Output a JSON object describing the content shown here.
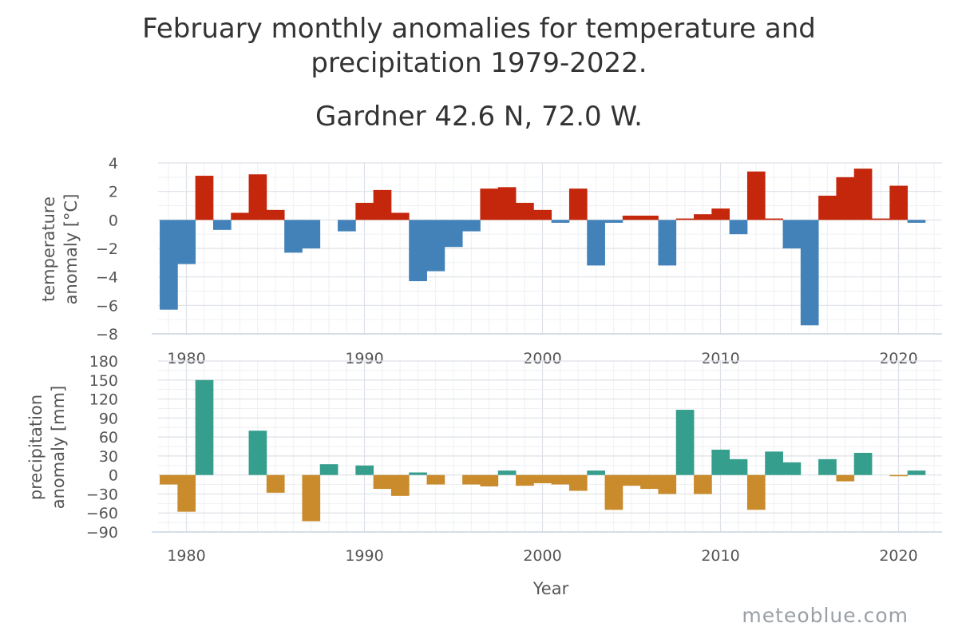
{
  "title_line1": "February monthly anomalies for temperature and",
  "title_line2": "precipitation 1979-2022.",
  "subtitle": "Gardner 42.6 N, 72.0 W.",
  "watermark": "meteoblue.com",
  "colors": {
    "temp_positive": "#c4270b",
    "temp_negative": "#4282b8",
    "precip_positive": "#369e8d",
    "precip_negative": "#c98b2b"
  },
  "chart_data": [
    {
      "type": "bar",
      "ylabel_line1": "temperature",
      "ylabel_line2": "anomaly [°C]",
      "xlabel": "",
      "xlim": [
        1979,
        2023
      ],
      "ylim": [
        -8,
        4
      ],
      "yticks": [
        4,
        2,
        0,
        -2,
        -4,
        -6,
        -8
      ],
      "xticks": [
        1980,
        1990,
        2000,
        2010,
        2020
      ],
      "grid": true,
      "x": [
        1979,
        1980,
        1981,
        1982,
        1983,
        1984,
        1985,
        1986,
        1987,
        1988,
        1989,
        1990,
        1991,
        1992,
        1993,
        1994,
        1995,
        1996,
        1997,
        1998,
        1999,
        2000,
        2001,
        2002,
        2003,
        2004,
        2005,
        2006,
        2007,
        2008,
        2009,
        2010,
        2011,
        2012,
        2013,
        2014,
        2015,
        2016,
        2017,
        2018,
        2019,
        2020,
        2021
      ],
      "values": [
        -6.3,
        -3.1,
        3.1,
        -0.7,
        0.5,
        3.2,
        0.7,
        -2.3,
        -2.0,
        0.0,
        -0.8,
        1.2,
        2.1,
        0.5,
        -4.3,
        -3.6,
        -1.9,
        -0.8,
        2.2,
        2.3,
        1.2,
        0.7,
        -0.2,
        2.2,
        -3.2,
        -0.2,
        0.3,
        0.3,
        -3.2,
        0.1,
        0.4,
        0.8,
        -1.0,
        3.4,
        0.1,
        -2.0,
        -7.4,
        1.7,
        3.0,
        3.6,
        0.1,
        2.4,
        -0.2
      ]
    },
    {
      "type": "bar",
      "ylabel_line1": "precipitation",
      "ylabel_line2": "anomaly [mm]",
      "xlabel": "Year",
      "xlim": [
        1979,
        2023
      ],
      "ylim": [
        -90,
        180
      ],
      "yticks": [
        180,
        150,
        120,
        90,
        60,
        30,
        0,
        -30,
        -60,
        -90
      ],
      "xticks": [
        1980,
        1990,
        2000,
        2010,
        2020
      ],
      "grid": true,
      "x": [
        1979,
        1980,
        1981,
        1982,
        1983,
        1984,
        1985,
        1986,
        1987,
        1988,
        1989,
        1990,
        1991,
        1992,
        1993,
        1994,
        1995,
        1996,
        1997,
        1998,
        1999,
        2000,
        2001,
        2002,
        2003,
        2004,
        2005,
        2006,
        2007,
        2008,
        2009,
        2010,
        2011,
        2012,
        2013,
        2014,
        2015,
        2016,
        2017,
        2018,
        2019,
        2020,
        2021
      ],
      "values": [
        -15,
        -58,
        150,
        0,
        0,
        70,
        -28,
        0,
        -73,
        17,
        0,
        15,
        -22,
        -33,
        4,
        -15,
        0,
        -15,
        -18,
        7,
        -17,
        -13,
        -15,
        -25,
        7,
        -55,
        -17,
        -22,
        -30,
        103,
        -30,
        40,
        25,
        -55,
        37,
        20,
        0,
        25,
        -10,
        35,
        0,
        -2,
        7
      ]
    }
  ]
}
